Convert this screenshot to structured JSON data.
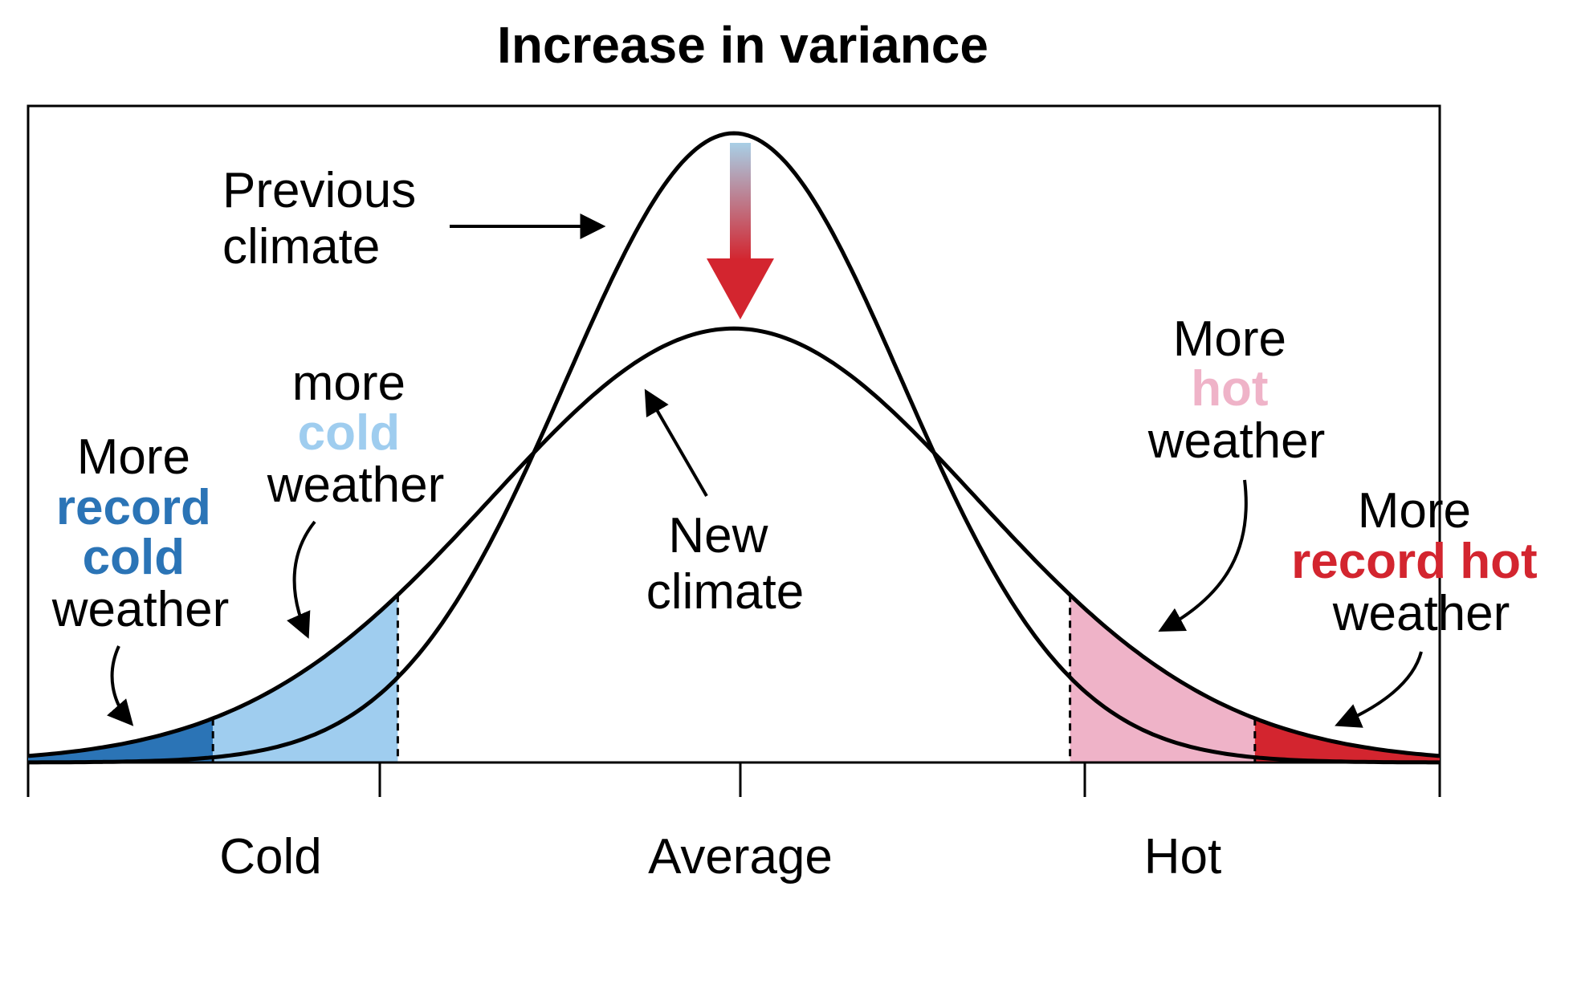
{
  "title": "Increase in variance",
  "axis": {
    "ticks": [
      "Cold",
      "Average",
      "Hot"
    ]
  },
  "labels": {
    "previous_climate": [
      "Previous",
      "climate"
    ],
    "new_climate": [
      "New",
      "climate"
    ],
    "more_cold": {
      "line1": "more",
      "highlight": "cold",
      "line3": "weather"
    },
    "more_record_cold": {
      "line1": "More",
      "highlight1": "record",
      "highlight2": "cold",
      "line4": "weather"
    },
    "more_hot": {
      "line1": "More",
      "highlight": "hot",
      "line3": "weather"
    },
    "more_record_hot": {
      "line1": "More",
      "highlight": "record hot",
      "line3": "weather"
    }
  },
  "colors": {
    "record_cold": "#2b74b6",
    "cold": "#9fcdef",
    "hot": "#efb3c8",
    "record_hot": "#d3252f",
    "arrow_top": "#a8cfe6",
    "arrow_bottom": "#d3252f",
    "curve": "#000000"
  },
  "curves": {
    "previous_sigma": 1.0,
    "new_sigma": 1.45,
    "mean": 0
  },
  "thresholds": {
    "record_cold": -3.1,
    "cold": -2.0,
    "hot": 2.0,
    "record_hot": 3.1
  },
  "x_range": [
    -4.2,
    4.2
  ]
}
